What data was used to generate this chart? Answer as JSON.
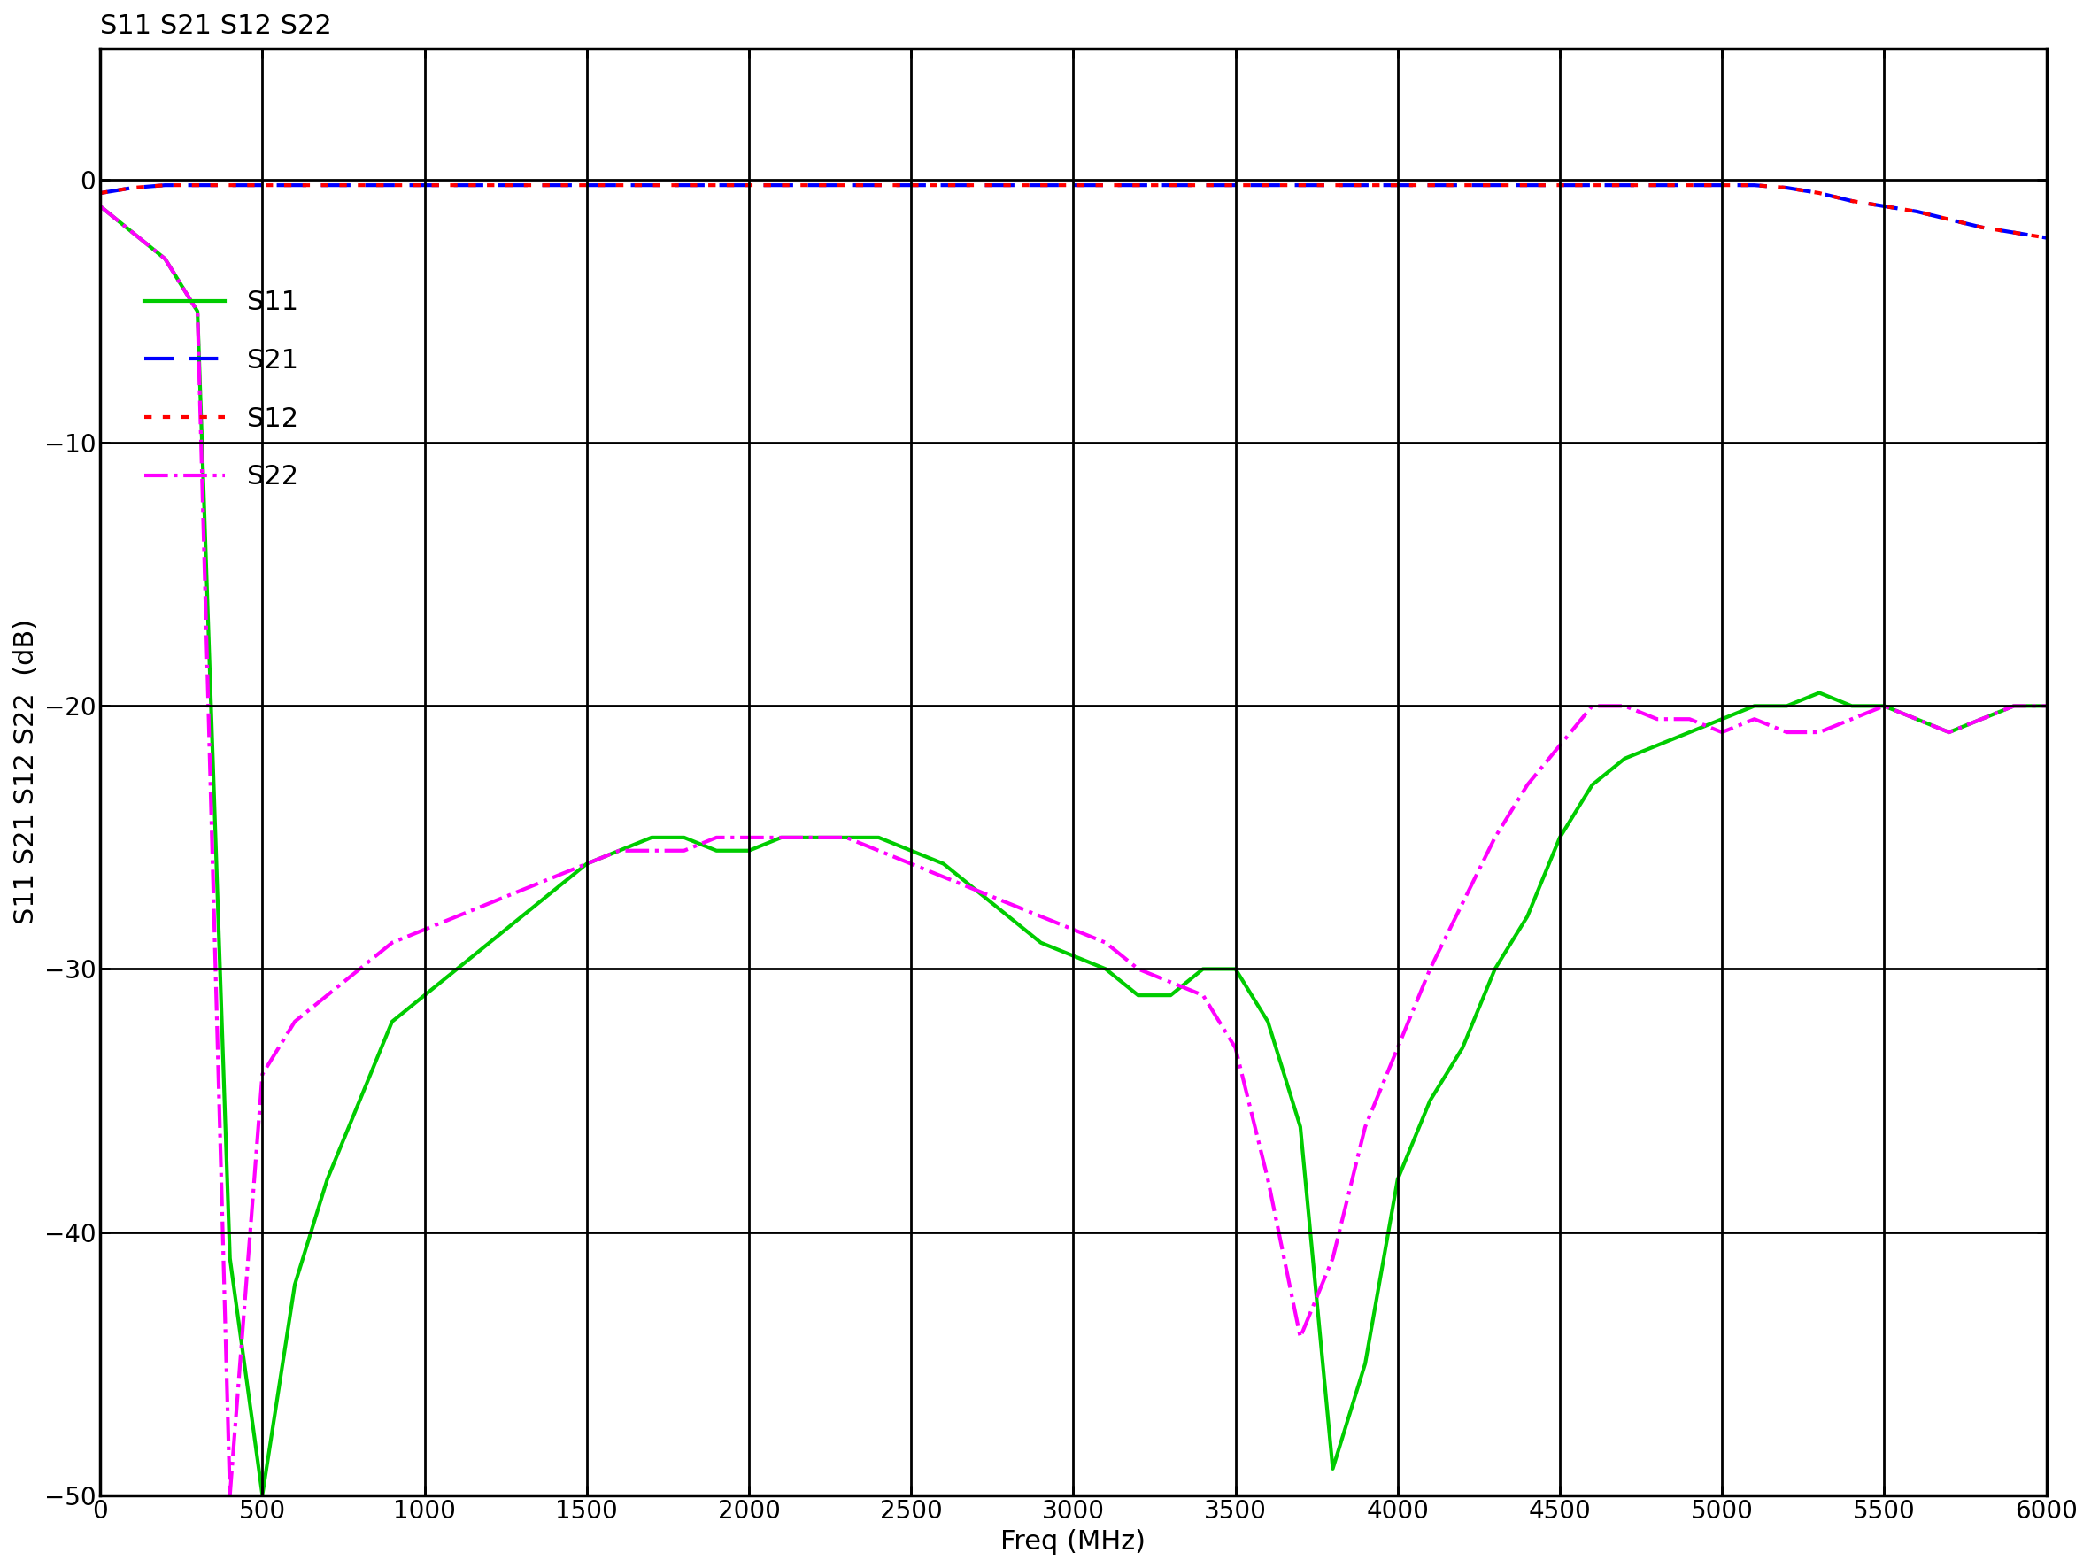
{
  "title": "S11 S21 S12 S22",
  "xlabel": "Freq (MHz)",
  "ylabel": "S11 S21 S12 S22  (dB)",
  "xlim": [
    0,
    6000
  ],
  "ylim": [
    -50,
    5
  ],
  "xticks": [
    0,
    500,
    1000,
    1500,
    2000,
    2500,
    3000,
    3500,
    4000,
    4500,
    5000,
    5500,
    6000
  ],
  "yticks": [
    0,
    -10,
    -20,
    -30,
    -40,
    -50
  ],
  "grid_major_color": "#000000",
  "background_color": "#ffffff",
  "title_fontsize": 22,
  "axis_label_fontsize": 22,
  "tick_fontsize": 20,
  "legend_fontsize": 22,
  "line_width": 3,
  "s11_color": "#00cc00",
  "s21_color": "#0000ff",
  "s12_color": "#ff0000",
  "s22_color": "#ff00ff",
  "s11_style": "-",
  "s21_style": "--",
  "s12_style": ":",
  "s22_style": "-.",
  "freq": [
    0,
    100,
    200,
    300,
    400,
    500,
    600,
    700,
    800,
    900,
    1000,
    1100,
    1200,
    1300,
    1400,
    1500,
    1600,
    1700,
    1800,
    1900,
    2000,
    2100,
    2200,
    2300,
    2400,
    2500,
    2600,
    2700,
    2800,
    2900,
    3000,
    3100,
    3200,
    3300,
    3400,
    3500,
    3600,
    3700,
    3800,
    3900,
    4000,
    4100,
    4200,
    4300,
    4400,
    4500,
    4600,
    4700,
    4800,
    4900,
    5000,
    5100,
    5200,
    5300,
    5400,
    5500,
    5600,
    5700,
    5800,
    5900,
    6000
  ],
  "s11": [
    -1,
    -2,
    -3,
    -5,
    -41,
    -50,
    -42,
    -38,
    -35,
    -32,
    -31,
    -30,
    -29,
    -28,
    -27,
    -26,
    -25.5,
    -25,
    -25,
    -25.5,
    -25.5,
    -25,
    -25,
    -25,
    -25,
    -25.5,
    -26,
    -27,
    -28,
    -29,
    -29.5,
    -30,
    -31,
    -31,
    -30,
    -30,
    -32,
    -36,
    -49,
    -45,
    -38,
    -35,
    -33,
    -30,
    -28,
    -25,
    -23,
    -22,
    -21.5,
    -21,
    -20.5,
    -20,
    -20,
    -19.5,
    -20,
    -20,
    -20.5,
    -21,
    -20.5,
    -20,
    -20
  ],
  "s21": [
    -0.5,
    -0.3,
    -0.2,
    -0.2,
    -0.2,
    -0.2,
    -0.2,
    -0.2,
    -0.2,
    -0.2,
    -0.2,
    -0.2,
    -0.2,
    -0.2,
    -0.2,
    -0.2,
    -0.2,
    -0.2,
    -0.2,
    -0.2,
    -0.2,
    -0.2,
    -0.2,
    -0.2,
    -0.2,
    -0.2,
    -0.2,
    -0.2,
    -0.2,
    -0.2,
    -0.2,
    -0.2,
    -0.2,
    -0.2,
    -0.2,
    -0.2,
    -0.2,
    -0.2,
    -0.2,
    -0.2,
    -0.2,
    -0.2,
    -0.2,
    -0.2,
    -0.2,
    -0.2,
    -0.2,
    -0.2,
    -0.2,
    -0.2,
    -0.2,
    -0.2,
    -0.3,
    -0.5,
    -0.8,
    -1.0,
    -1.2,
    -1.5,
    -1.8,
    -2.0,
    -2.2
  ],
  "s12": [
    -0.5,
    -0.3,
    -0.2,
    -0.2,
    -0.2,
    -0.2,
    -0.2,
    -0.2,
    -0.2,
    -0.2,
    -0.2,
    -0.2,
    -0.2,
    -0.2,
    -0.2,
    -0.2,
    -0.2,
    -0.2,
    -0.2,
    -0.2,
    -0.2,
    -0.2,
    -0.2,
    -0.2,
    -0.2,
    -0.2,
    -0.2,
    -0.2,
    -0.2,
    -0.2,
    -0.2,
    -0.2,
    -0.2,
    -0.2,
    -0.2,
    -0.2,
    -0.2,
    -0.2,
    -0.2,
    -0.2,
    -0.2,
    -0.2,
    -0.2,
    -0.2,
    -0.2,
    -0.2,
    -0.2,
    -0.2,
    -0.2,
    -0.2,
    -0.2,
    -0.2,
    -0.3,
    -0.5,
    -0.8,
    -1.0,
    -1.2,
    -1.5,
    -1.8,
    -2.0,
    -2.2
  ],
  "s22": [
    -1,
    -2,
    -3,
    -5,
    -50,
    -34,
    -32,
    -31,
    -30,
    -29,
    -28.5,
    -28,
    -27.5,
    -27,
    -26.5,
    -26,
    -25.5,
    -25.5,
    -25.5,
    -25,
    -25,
    -25,
    -25,
    -25,
    -25.5,
    -26,
    -26.5,
    -27,
    -27.5,
    -28,
    -28.5,
    -29,
    -30,
    -30.5,
    -31,
    -33,
    -38,
    -44,
    -41,
    -36,
    -33,
    -30,
    -27.5,
    -25,
    -23,
    -21.5,
    -20,
    -20,
    -20.5,
    -20.5,
    -21,
    -20.5,
    -21,
    -21,
    -20.5,
    -20,
    -20.5,
    -21,
    -20.5,
    -20,
    -20
  ]
}
